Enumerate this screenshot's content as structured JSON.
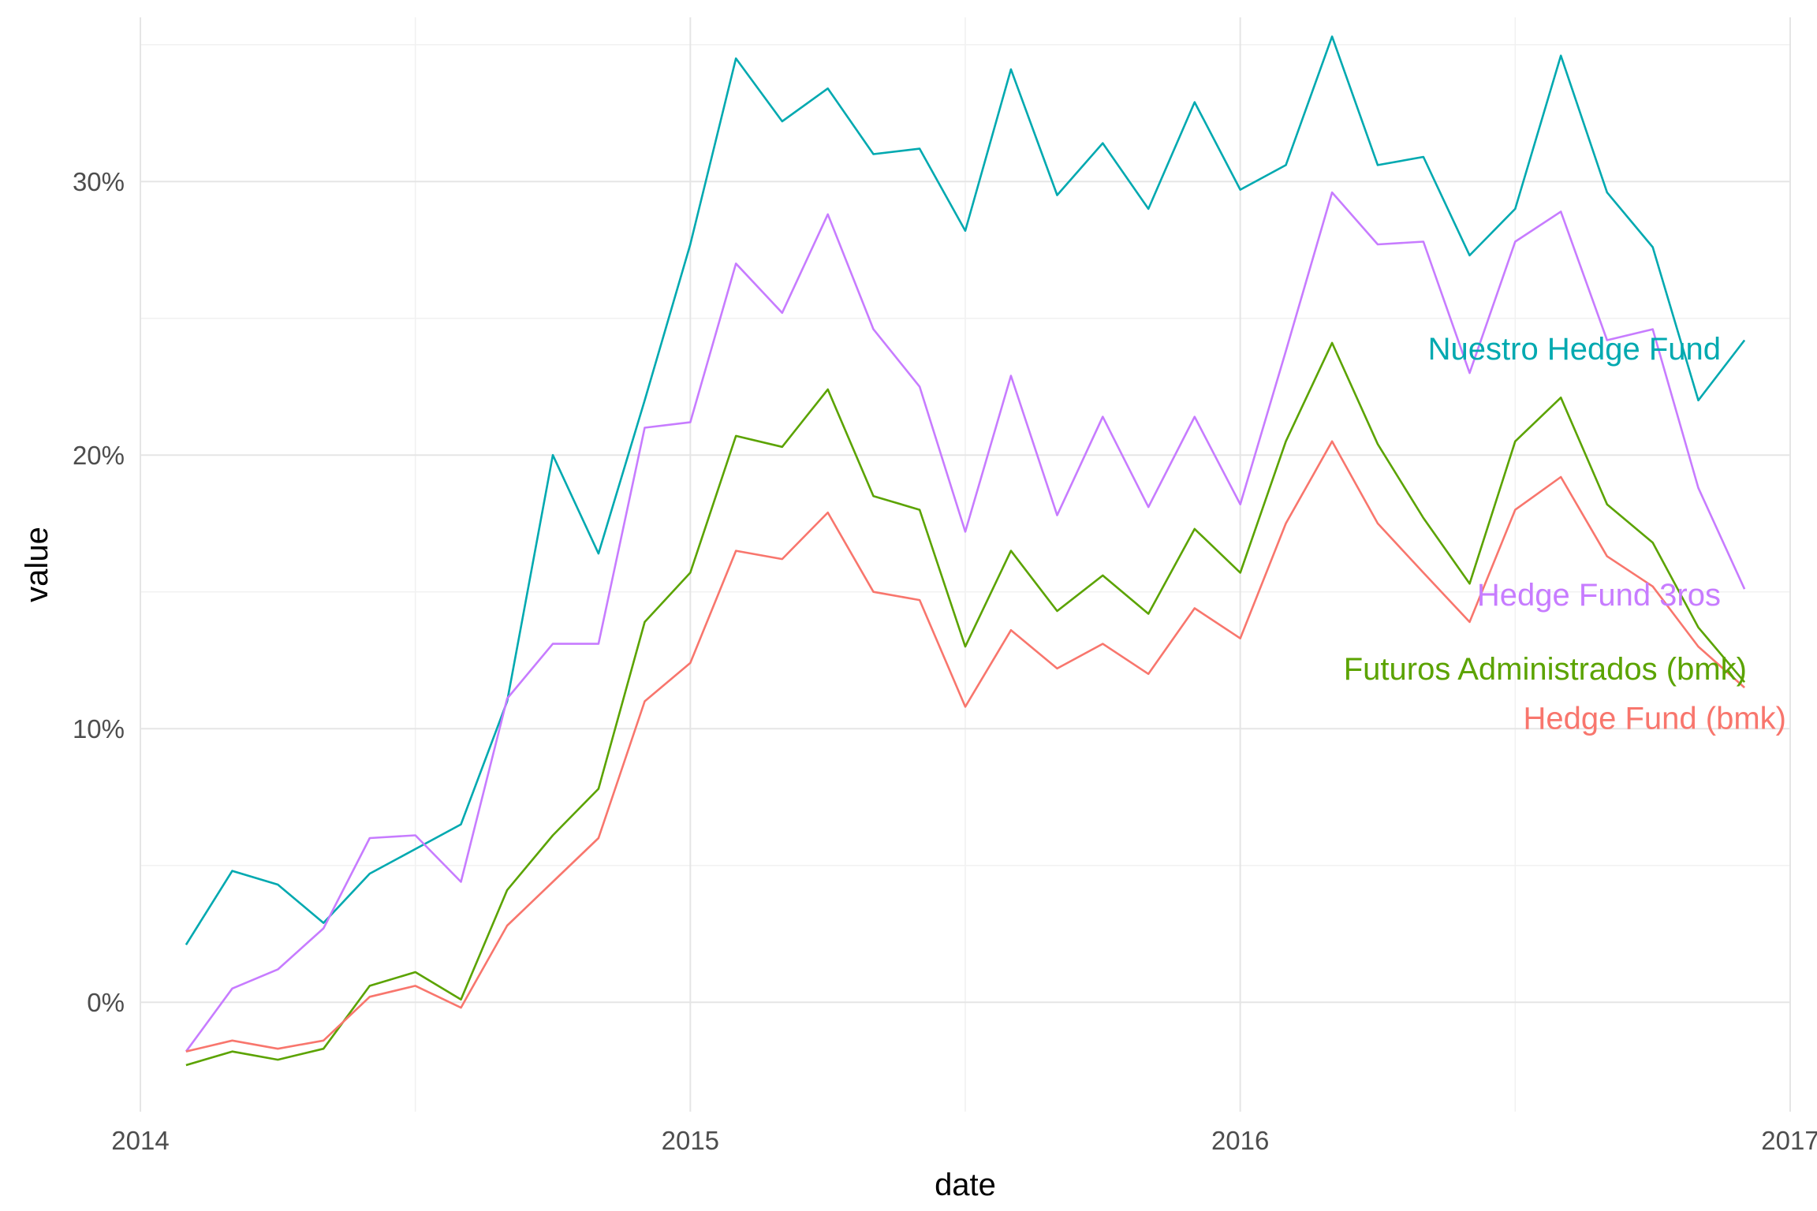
{
  "chart_data": {
    "type": "line",
    "xlabel": "date",
    "ylabel": "value",
    "x_ticks": [
      2014,
      2015,
      2016,
      2017
    ],
    "y_ticks": [
      0,
      0.1,
      0.2,
      0.3
    ],
    "y_tick_labels": [
      "0%",
      "10%",
      "20%",
      "30%"
    ],
    "xlim": [
      2014.0,
      2017.0
    ],
    "ylim": [
      -0.04,
      0.36
    ],
    "grid": true,
    "x": [
      2014.083,
      2014.167,
      2014.25,
      2014.333,
      2014.417,
      2014.5,
      2014.583,
      2014.667,
      2014.75,
      2014.833,
      2014.917,
      2015.0,
      2015.083,
      2015.167,
      2015.25,
      2015.333,
      2015.417,
      2015.5,
      2015.583,
      2015.667,
      2015.75,
      2015.833,
      2015.917,
      2016.0,
      2016.083,
      2016.167,
      2016.25,
      2016.333,
      2016.417,
      2016.5,
      2016.583,
      2016.667,
      2016.75,
      2016.833,
      2016.917
    ],
    "series": [
      {
        "name": "Nuestro Hedge Fund",
        "color": "#00A9B0",
        "values": [
          0.021,
          0.048,
          0.043,
          0.029,
          0.047,
          0.056,
          0.065,
          0.11,
          0.2,
          0.164,
          0.22,
          0.277,
          0.345,
          0.322,
          0.334,
          0.31,
          0.312,
          0.282,
          0.341,
          0.295,
          0.314,
          0.29,
          0.329,
          0.297,
          0.306,
          0.353,
          0.306,
          0.309,
          0.273,
          0.29,
          0.346,
          0.296,
          0.276,
          0.22,
          0.242
        ]
      },
      {
        "name": "Hedge Fund 3ros",
        "color": "#C77CFF",
        "values": [
          -0.018,
          0.005,
          0.012,
          0.027,
          0.06,
          0.061,
          0.044,
          0.111,
          0.131,
          0.131,
          0.21,
          0.212,
          0.27,
          0.252,
          0.288,
          0.246,
          0.225,
          0.172,
          0.229,
          0.178,
          0.214,
          0.181,
          0.214,
          0.182,
          0.238,
          0.296,
          0.277,
          0.278,
          0.23,
          0.278,
          0.289,
          0.242,
          0.246,
          0.188,
          0.151
        ]
      },
      {
        "name": "Futuros Administrados (bmk)",
        "color": "#5BA300",
        "values": [
          -0.023,
          -0.018,
          -0.021,
          -0.017,
          0.006,
          0.011,
          0.001,
          0.041,
          0.061,
          0.078,
          0.139,
          0.157,
          0.207,
          0.203,
          0.224,
          0.185,
          0.18,
          0.13,
          0.165,
          0.143,
          0.156,
          0.142,
          0.173,
          0.157,
          0.205,
          0.241,
          0.204,
          0.177,
          0.153,
          0.205,
          0.221,
          0.182,
          0.168,
          0.137,
          0.117
        ]
      },
      {
        "name": "Hedge Fund (bmk)",
        "color": "#F8766D",
        "values": [
          -0.018,
          -0.014,
          -0.017,
          -0.014,
          0.002,
          0.006,
          -0.002,
          0.028,
          0.044,
          0.06,
          0.11,
          0.124,
          0.165,
          0.162,
          0.179,
          0.15,
          0.147,
          0.108,
          0.136,
          0.122,
          0.131,
          0.12,
          0.144,
          0.133,
          0.175,
          0.205,
          0.175,
          0.157,
          0.139,
          0.18,
          0.192,
          0.163,
          0.152,
          0.13,
          0.115
        ]
      }
    ]
  }
}
